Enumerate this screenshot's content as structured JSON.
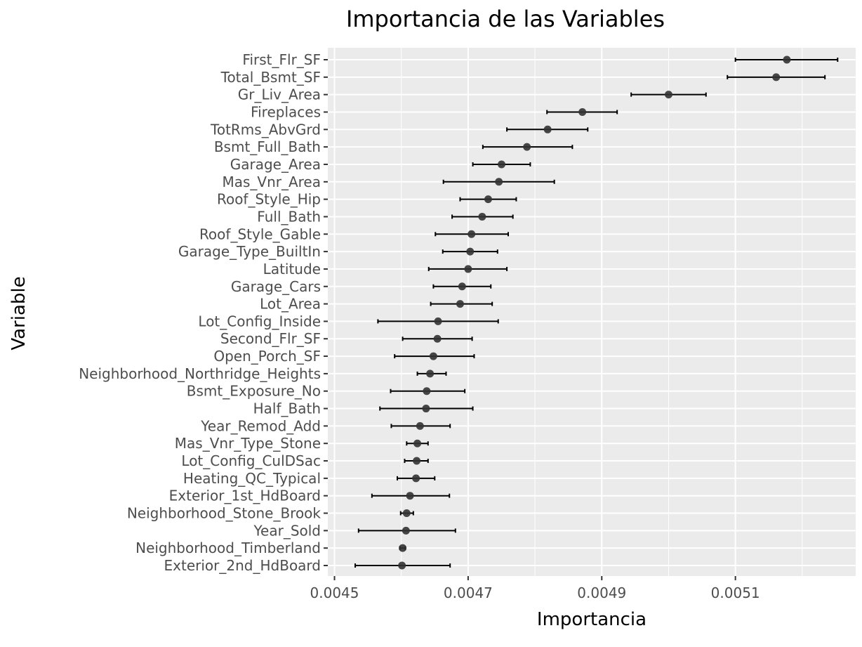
{
  "chart_data": {
    "type": "scatter",
    "subtype": "point-errorbar",
    "title": "Importancia de las Variables",
    "xlabel": "Importancia",
    "ylabel": "Variable",
    "xlim": [
      0.00449,
      0.00528
    ],
    "xticks": [
      0.0045,
      0.0047,
      0.0049,
      0.0051
    ],
    "xtick_labels": [
      "0.0045",
      "0.0047",
      "0.0049",
      "0.0051"
    ],
    "grid": true,
    "legend": "none",
    "colors": {
      "panel": "#ebebeb",
      "grid": "#ffffff",
      "point": "#333333",
      "errorbar": "#000000",
      "tick_label": "#4d4d4d"
    },
    "points": [
      {
        "variable": "First_Flr_SF",
        "importance": 0.005177,
        "lower": 0.0051,
        "upper": 0.005253
      },
      {
        "variable": "Total_Bsmt_SF",
        "importance": 0.005161,
        "lower": 0.005088,
        "upper": 0.005234
      },
      {
        "variable": "Gr_Liv_Area",
        "importance": 0.005,
        "lower": 0.004944,
        "upper": 0.005056
      },
      {
        "variable": "Fireplaces",
        "importance": 0.004871,
        "lower": 0.004818,
        "upper": 0.004923
      },
      {
        "variable": "TotRms_AbvGrd",
        "importance": 0.004819,
        "lower": 0.004758,
        "upper": 0.004879
      },
      {
        "variable": "Bsmt_Full_Bath",
        "importance": 0.004788,
        "lower": 0.004722,
        "upper": 0.004856
      },
      {
        "variable": "Garage_Area",
        "importance": 0.00475,
        "lower": 0.004707,
        "upper": 0.004793
      },
      {
        "variable": "Mas_Vnr_Area",
        "importance": 0.004746,
        "lower": 0.004663,
        "upper": 0.004829
      },
      {
        "variable": "Roof_Style_Hip",
        "importance": 0.00473,
        "lower": 0.004688,
        "upper": 0.004772
      },
      {
        "variable": "Full_Bath",
        "importance": 0.004721,
        "lower": 0.004676,
        "upper": 0.004767
      },
      {
        "variable": "Roof_Style_Gable",
        "importance": 0.004705,
        "lower": 0.004651,
        "upper": 0.00476
      },
      {
        "variable": "Garage_Type_BuiltIn",
        "importance": 0.004703,
        "lower": 0.004662,
        "upper": 0.004744
      },
      {
        "variable": "Latitude",
        "importance": 0.0047,
        "lower": 0.004641,
        "upper": 0.004758
      },
      {
        "variable": "Garage_Cars",
        "importance": 0.004691,
        "lower": 0.004648,
        "upper": 0.004734
      },
      {
        "variable": "Lot_Area",
        "importance": 0.004688,
        "lower": 0.004644,
        "upper": 0.004736
      },
      {
        "variable": "Lot_Config_Inside",
        "importance": 0.004655,
        "lower": 0.004565,
        "upper": 0.004745
      },
      {
        "variable": "Second_Flr_SF",
        "importance": 0.004654,
        "lower": 0.004602,
        "upper": 0.004706
      },
      {
        "variable": "Open_Porch_SF",
        "importance": 0.004648,
        "lower": 0.00459,
        "upper": 0.004709
      },
      {
        "variable": "Neighborhood_Northridge_Heights",
        "importance": 0.004643,
        "lower": 0.004624,
        "upper": 0.004667
      },
      {
        "variable": "Bsmt_Exposure_No",
        "importance": 0.004638,
        "lower": 0.004584,
        "upper": 0.004695
      },
      {
        "variable": "Half_Bath",
        "importance": 0.004637,
        "lower": 0.004568,
        "upper": 0.004707
      },
      {
        "variable": "Year_Remod_Add",
        "importance": 0.004628,
        "lower": 0.004585,
        "upper": 0.004673
      },
      {
        "variable": "Mas_Vnr_Type_Stone",
        "importance": 0.004624,
        "lower": 0.004608,
        "upper": 0.00464
      },
      {
        "variable": "Lot_Config_CulDSac",
        "importance": 0.004623,
        "lower": 0.004605,
        "upper": 0.00464
      },
      {
        "variable": "Heating_QC_Typical",
        "importance": 0.004622,
        "lower": 0.004594,
        "upper": 0.00465
      },
      {
        "variable": "Exterior_1st_HdBoard",
        "importance": 0.004613,
        "lower": 0.004556,
        "upper": 0.004672
      },
      {
        "variable": "Neighborhood_Stone_Brook",
        "importance": 0.004608,
        "lower": 0.004599,
        "upper": 0.004618
      },
      {
        "variable": "Year_Sold",
        "importance": 0.004607,
        "lower": 0.004536,
        "upper": 0.004681
      },
      {
        "variable": "Neighborhood_Timberland",
        "importance": 0.004602,
        "lower": 0.004598,
        "upper": 0.004606
      },
      {
        "variable": "Exterior_2nd_HdBoard",
        "importance": 0.004601,
        "lower": 0.004531,
        "upper": 0.004673
      }
    ]
  }
}
